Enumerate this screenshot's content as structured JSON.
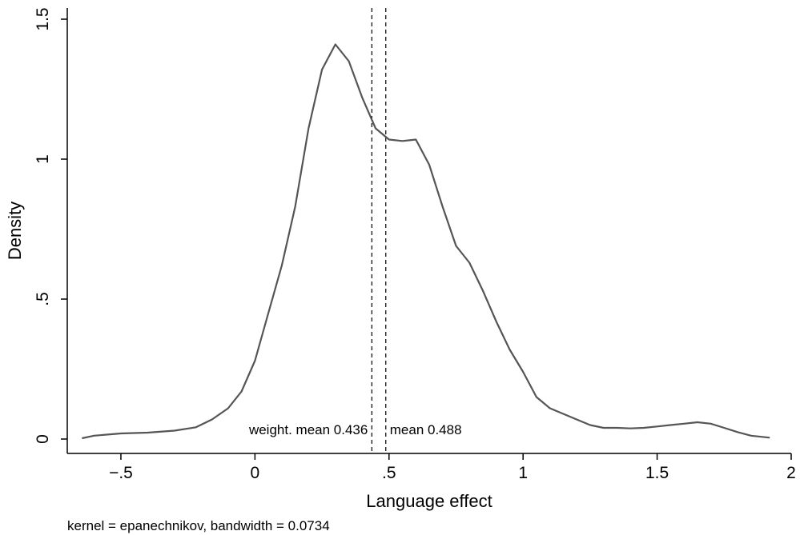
{
  "chart_data": {
    "type": "line",
    "title": "",
    "xlabel": "Language effect",
    "ylabel": "Density",
    "xlim": [
      -0.7,
      2.0
    ],
    "ylim": [
      0,
      1.5
    ],
    "x_ticks": [
      {
        "value": -0.5,
        "label": "−.5"
      },
      {
        "value": 0,
        "label": "0"
      },
      {
        "value": 0.5,
        "label": ".5"
      },
      {
        "value": 1,
        "label": "1"
      },
      {
        "value": 1.5,
        "label": "1.5"
      },
      {
        "value": 2,
        "label": "2"
      }
    ],
    "y_ticks": [
      {
        "value": 0,
        "label": "0"
      },
      {
        "value": 0.5,
        "label": ".5"
      },
      {
        "value": 1,
        "label": "1"
      },
      {
        "value": 1.5,
        "label": "1.5"
      }
    ],
    "grid": false,
    "legend": "none",
    "line_color": "#555555",
    "series": [
      {
        "x": [
          -0.645,
          -0.6,
          -0.5,
          -0.4,
          -0.3,
          -0.22,
          -0.16,
          -0.1,
          -0.05,
          0.0,
          0.05,
          0.1,
          0.15,
          0.2,
          0.25,
          0.3,
          0.35,
          0.4,
          0.45,
          0.5,
          0.55,
          0.6,
          0.65,
          0.7,
          0.75,
          0.8,
          0.85,
          0.9,
          0.95,
          1.0,
          1.05,
          1.1,
          1.15,
          1.2,
          1.25,
          1.3,
          1.35,
          1.4,
          1.45,
          1.5,
          1.55,
          1.6,
          1.65,
          1.7,
          1.75,
          1.8,
          1.85,
          1.92
        ],
        "y": [
          0.003,
          0.012,
          0.02,
          0.023,
          0.03,
          0.042,
          0.07,
          0.11,
          0.17,
          0.28,
          0.45,
          0.62,
          0.83,
          1.11,
          1.32,
          1.41,
          1.35,
          1.22,
          1.11,
          1.07,
          1.065,
          1.07,
          0.98,
          0.83,
          0.69,
          0.63,
          0.53,
          0.42,
          0.32,
          0.24,
          0.15,
          0.11,
          0.09,
          0.07,
          0.05,
          0.04,
          0.04,
          0.038,
          0.04,
          0.045,
          0.05,
          0.055,
          0.06,
          0.055,
          0.04,
          0.025,
          0.012,
          0.005
        ]
      }
    ],
    "reference_lines": [
      {
        "x": 0.436,
        "label": "weight. mean 0.436",
        "style": "dashed"
      },
      {
        "x": 0.488,
        "label": "mean 0.488",
        "style": "dashed"
      }
    ],
    "note": "kernel = epanechnikov, bandwidth = 0.0734"
  }
}
